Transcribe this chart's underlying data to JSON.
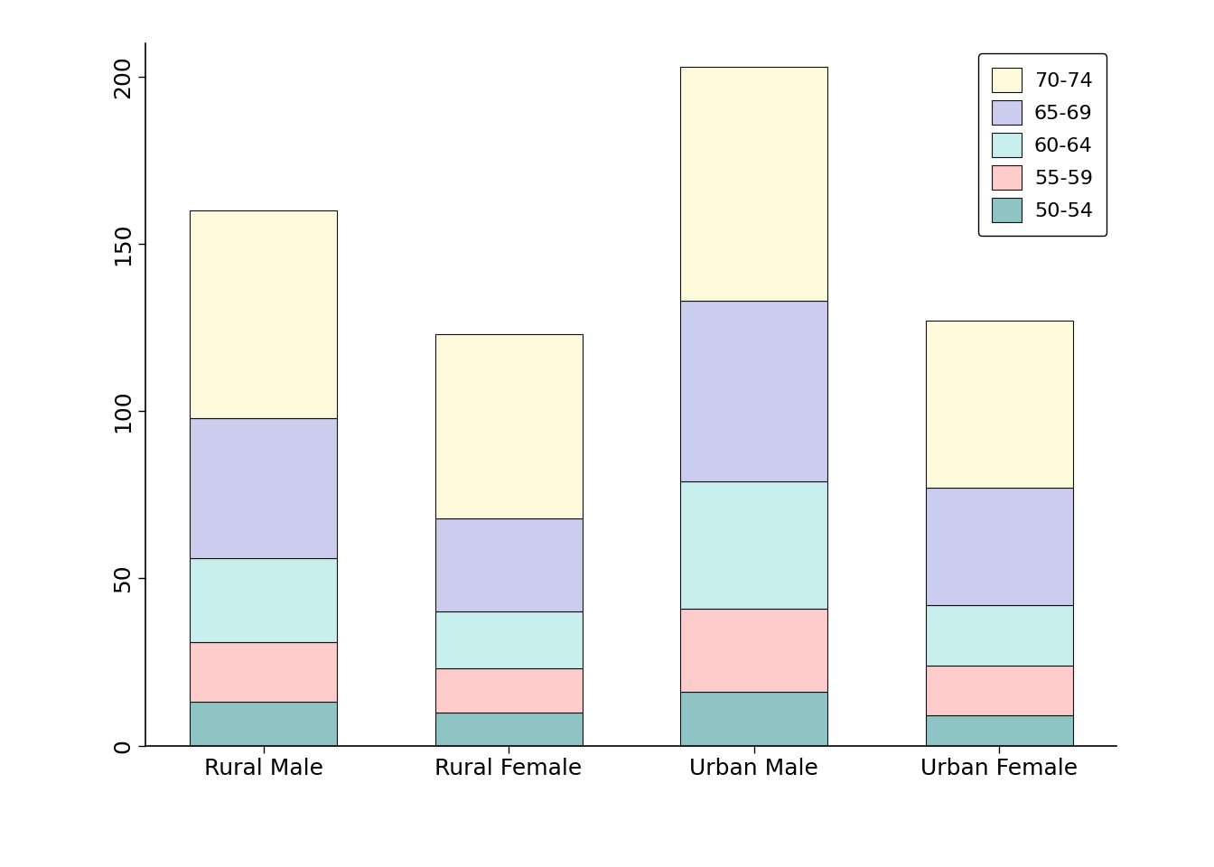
{
  "categories": [
    "Rural Male",
    "Rural Female",
    "Urban Male",
    "Urban Female"
  ],
  "segments": [
    "50-54",
    "55-59",
    "60-64",
    "65-69",
    "70-74"
  ],
  "values": {
    "Rural Male": [
      13,
      18,
      25,
      42,
      62
    ],
    "Rural Female": [
      10,
      13,
      17,
      28,
      55
    ],
    "Urban Male": [
      16,
      25,
      38,
      54,
      70
    ],
    "Urban Female": [
      9,
      15,
      18,
      35,
      50
    ]
  },
  "colors": [
    "#8EC4C4",
    "#FFCCCC",
    "#C8EEEE",
    "#CCCCEE",
    "#FEFADC"
  ],
  "ylim": [
    0,
    210
  ],
  "yticks": [
    0,
    50,
    100,
    150,
    200
  ],
  "bar_width": 0.6,
  "background_color": "#ffffff",
  "edge_color": "#111111",
  "edge_width": 0.8,
  "tick_fontsize": 18,
  "label_fontsize": 18,
  "legend_fontsize": 16
}
